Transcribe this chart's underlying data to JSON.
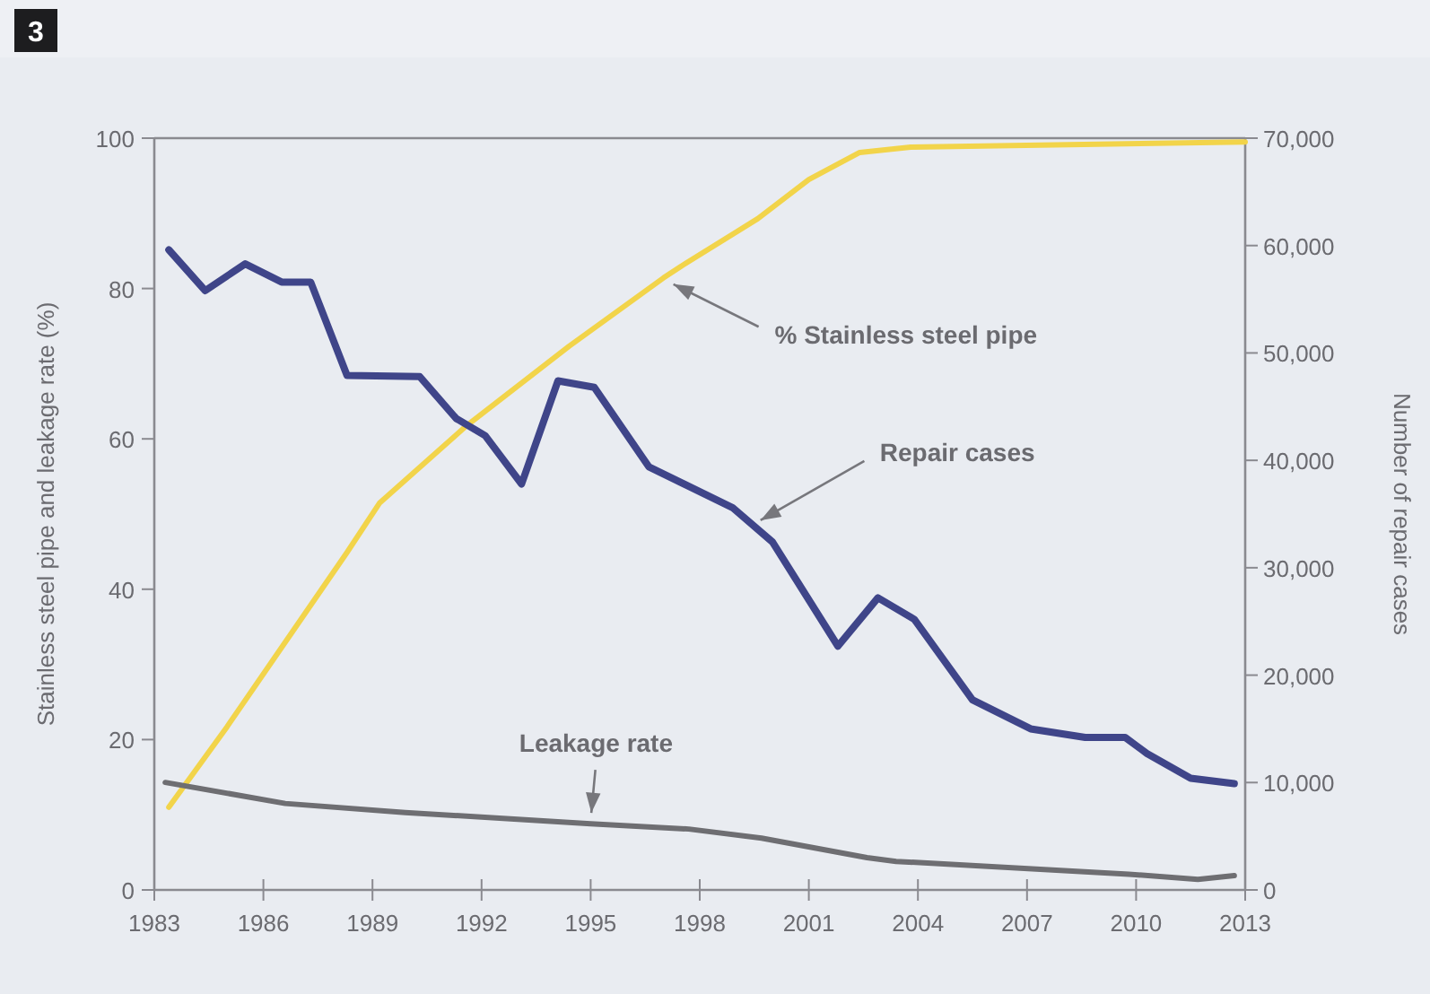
{
  "chart_data": {
    "type": "line",
    "ylabel": "Stainless steel pipe and leakage rate (%)",
    "y2label": "Number of repair cases",
    "annotations": [
      "3",
      {
        "text": "% Stainless steel pipe",
        "x": 1997.1,
        "y": 81
      },
      {
        "text": "Repair cases",
        "x": 1999.5,
        "y": 48.7
      },
      {
        "text": "Leakage rate",
        "x": 1995,
        "y": 9.3
      }
    ],
    "xlim": [
      1983,
      2013
    ],
    "xticks": [
      1983,
      1986,
      1989,
      1992,
      1995,
      1998,
      2001,
      2004,
      2007,
      2010,
      2013
    ],
    "ylim": [
      0,
      100
    ],
    "yticks": [
      0,
      20,
      40,
      60,
      80,
      100
    ],
    "y2lim": [
      0,
      70000
    ],
    "y2ticks": [
      {
        "value": 0,
        "label": "0"
      },
      {
        "value": 10000,
        "label": "10,000"
      },
      {
        "value": 20000,
        "label": "20,000"
      },
      {
        "value": 30000,
        "label": "30,000"
      },
      {
        "value": 40000,
        "label": "40,000"
      },
      {
        "value": 50000,
        "label": "50,000"
      },
      {
        "value": 60000,
        "label": "60,000"
      },
      {
        "value": 70000,
        "label": "70,000"
      }
    ],
    "grid": false,
    "marker": "none",
    "line_style": "solid",
    "series": [
      {
        "color": "#f2d44a",
        "x": [
          1983.4,
          1985,
          1988.3,
          1989.2,
          1991.6,
          1994.4,
          1997,
          1997.5,
          1999.6,
          2001,
          2002.4,
          2003.8,
          2013
        ],
        "values": [
          11,
          21.7,
          44.9,
          51.5,
          61.8,
          72.3,
          81.4,
          83,
          89.3,
          94.5,
          98.1,
          98.8,
          99.5
        ]
      },
      {
        "color": "#3f4589",
        "axis": "y2",
        "x": [
          1983.4,
          1984.4,
          1985.5,
          1986.5,
          1987.3,
          1988.3,
          1990.3,
          1991.3,
          1992.1,
          1993.1,
          1994.1,
          1995.1,
          1996.6,
          1998.9,
          2000,
          2001.8,
          2002.9,
          2003.9,
          2005.5,
          2007.1,
          2008.6,
          2009.7,
          2010.3,
          2011.5,
          2012.7
        ],
        "values": [
          59600,
          55800,
          58300,
          56600,
          56600,
          47900,
          47800,
          43900,
          42300,
          37800,
          47400,
          46800,
          39400,
          35600,
          32400,
          22700,
          27200,
          25200,
          17700,
          15000,
          14200,
          14200,
          12700,
          10400,
          9900
        ]
      },
      {
        "color": "#6e6e72",
        "x": [
          1983.3,
          1986.6,
          1989.9,
          1995,
          1997.7,
          1999.7,
          2002.6,
          2003.4,
          2009.8,
          2011.7,
          2012.7
        ],
        "values": [
          14.3,
          11.5,
          10.3,
          8.8,
          8.1,
          6.9,
          4.3,
          3.8,
          2.1,
          1.4,
          1.9
        ]
      }
    ]
  }
}
